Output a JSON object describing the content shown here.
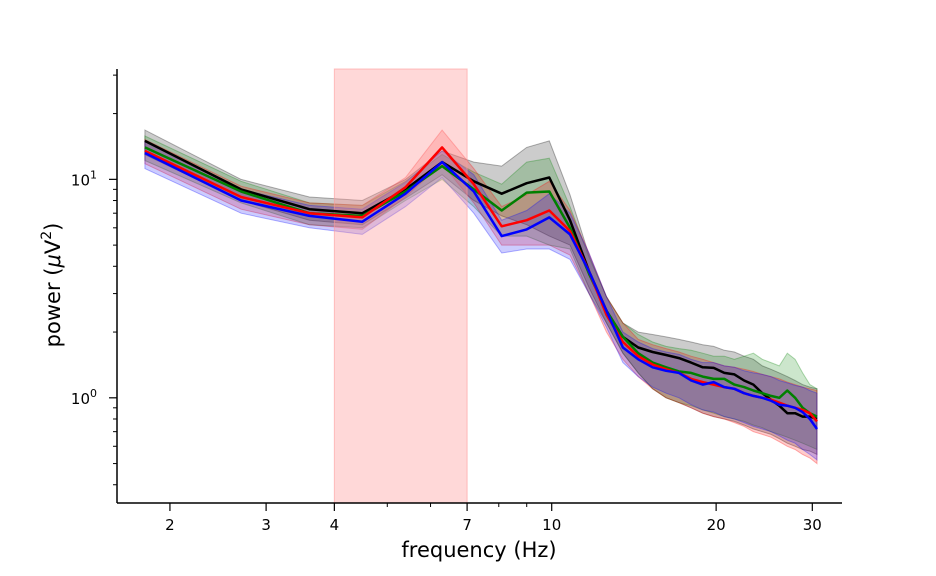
{
  "chart_data": {
    "type": "line",
    "xlabel": "frequency (Hz)",
    "ylabel_base": "power (",
    "ylabel_mu": "μ",
    "ylabel_unit": "V",
    "ylabel_exp": "2",
    "ylabel_close": ")",
    "xscale": "log",
    "yscale": "log",
    "xlim": [
      1.6,
      34
    ],
    "ylim": [
      0.33,
      32
    ],
    "grid": false,
    "legend": "none",
    "x_ticks": [
      {
        "value": 2,
        "label": "2"
      },
      {
        "value": 3,
        "label": "3"
      },
      {
        "value": 4,
        "label": "4"
      },
      {
        "value": 7,
        "label": "7"
      },
      {
        "value": 10,
        "label": "10"
      },
      {
        "value": 20,
        "label": "20"
      },
      {
        "value": 30,
        "label": "30"
      }
    ],
    "y_ticks": [
      {
        "value": 1,
        "base": "10",
        "exp": "0"
      },
      {
        "value": 10,
        "base": "10",
        "exp": "1"
      }
    ],
    "highlight_band": {
      "x0": 4,
      "x1": 7,
      "color": "#ff9999"
    },
    "x": [
      1.8,
      2.7,
      3.6,
      4.5,
      5.4,
      6.3,
      7.2,
      8.1,
      9.0,
      9.9,
      10.8,
      11.7,
      12.6,
      13.5,
      14.4,
      15.3,
      16.2,
      17.1,
      18.0,
      18.9,
      19.8,
      20.7,
      21.6,
      22.5,
      23.4,
      24.3,
      25.2,
      26.1,
      27.0,
      27.9,
      28.8,
      29.7,
      30.6
    ],
    "series": [
      {
        "color": "#000000",
        "values": [
          15.0,
          9.0,
          7.3,
          7.0,
          9.0,
          12.0,
          9.8,
          8.6,
          9.6,
          10.2,
          6.5,
          3.8,
          2.5,
          1.9,
          1.7,
          1.62,
          1.57,
          1.52,
          1.45,
          1.38,
          1.37,
          1.3,
          1.28,
          1.2,
          1.15,
          1.05,
          0.98,
          0.92,
          0.85,
          0.85,
          0.82,
          0.82,
          0.8
        ],
        "lower": [
          13.0,
          8.0,
          6.5,
          6.2,
          8.2,
          10.5,
          8.0,
          6.8,
          6.2,
          5.5,
          5.0,
          3.2,
          2.2,
          1.6,
          1.3,
          1.1,
          1.0,
          0.95,
          0.9,
          0.85,
          0.82,
          0.8,
          0.78,
          0.75,
          0.72,
          0.7,
          0.68,
          0.65,
          0.62,
          0.6,
          0.58,
          0.57,
          0.55
        ],
        "upper": [
          16.8,
          10.0,
          8.3,
          8.0,
          10.0,
          13.5,
          12.0,
          11.5,
          14.0,
          15.0,
          8.5,
          4.5,
          2.9,
          2.2,
          2.0,
          1.95,
          1.9,
          1.85,
          1.8,
          1.75,
          1.72,
          1.65,
          1.62,
          1.55,
          1.5,
          1.4,
          1.35,
          1.3,
          1.25,
          1.2,
          1.15,
          1.12,
          1.1
        ]
      },
      {
        "color": "#008000",
        "values": [
          14.0,
          8.8,
          7.0,
          6.8,
          8.8,
          11.5,
          9.0,
          7.2,
          8.7,
          8.8,
          6.0,
          3.7,
          2.5,
          1.9,
          1.6,
          1.45,
          1.38,
          1.32,
          1.3,
          1.25,
          1.22,
          1.22,
          1.15,
          1.12,
          1.08,
          1.05,
          1.02,
          1.0,
          1.08,
          1.0,
          0.9,
          0.85,
          0.82
        ],
        "lower": [
          12.2,
          7.8,
          6.2,
          6.0,
          8.0,
          10.0,
          7.5,
          5.5,
          5.5,
          5.0,
          4.8,
          3.0,
          2.2,
          1.6,
          1.3,
          1.1,
          1.0,
          0.95,
          0.92,
          0.88,
          0.85,
          0.82,
          0.8,
          0.78,
          0.75,
          0.73,
          0.7,
          0.68,
          0.66,
          0.64,
          0.62,
          0.6,
          0.58
        ],
        "upper": [
          15.8,
          9.8,
          7.8,
          7.6,
          9.8,
          13.0,
          10.8,
          9.5,
          12.0,
          12.5,
          7.5,
          4.4,
          2.9,
          2.2,
          1.95,
          1.8,
          1.72,
          1.68,
          1.65,
          1.6,
          1.55,
          1.55,
          1.5,
          1.55,
          1.6,
          1.5,
          1.45,
          1.4,
          1.6,
          1.5,
          1.3,
          1.15,
          1.1
        ]
      },
      {
        "color": "#ff0000",
        "values": [
          13.5,
          8.3,
          7.0,
          6.7,
          9.2,
          14.0,
          9.5,
          6.1,
          6.5,
          7.2,
          5.8,
          3.8,
          2.4,
          1.8,
          1.55,
          1.42,
          1.35,
          1.3,
          1.22,
          1.18,
          1.15,
          1.12,
          1.1,
          1.05,
          1.02,
          1.0,
          0.98,
          0.95,
          0.92,
          0.9,
          0.88,
          0.85,
          0.78
        ],
        "lower": [
          11.8,
          7.3,
          6.2,
          5.9,
          8.3,
          11.8,
          7.8,
          5.0,
          5.0,
          5.0,
          4.5,
          3.0,
          2.0,
          1.5,
          1.25,
          1.1,
          1.0,
          0.95,
          0.9,
          0.85,
          0.82,
          0.8,
          0.77,
          0.74,
          0.7,
          0.68,
          0.66,
          0.63,
          0.6,
          0.58,
          0.55,
          0.53,
          0.5
        ],
        "upper": [
          15.2,
          9.3,
          7.8,
          7.6,
          10.2,
          16.8,
          11.2,
          7.5,
          8.5,
          9.8,
          7.2,
          4.6,
          2.9,
          2.2,
          1.85,
          1.75,
          1.68,
          1.62,
          1.55,
          1.5,
          1.45,
          1.4,
          1.38,
          1.35,
          1.32,
          1.28,
          1.25,
          1.22,
          1.18,
          1.15,
          1.12,
          1.1,
          1.08
        ]
      },
      {
        "color": "#0000ff",
        "values": [
          13.2,
          8.0,
          6.8,
          6.4,
          8.6,
          12.0,
          8.8,
          5.5,
          5.9,
          6.7,
          5.6,
          3.8,
          2.5,
          1.7,
          1.5,
          1.38,
          1.33,
          1.3,
          1.2,
          1.15,
          1.18,
          1.12,
          1.1,
          1.05,
          1.02,
          1.0,
          0.97,
          0.93,
          0.92,
          0.9,
          0.86,
          0.8,
          0.72
        ],
        "lower": [
          11.2,
          7.0,
          6.0,
          5.6,
          7.5,
          10.2,
          7.0,
          4.6,
          4.8,
          4.8,
          4.3,
          3.0,
          2.1,
          1.45,
          1.25,
          1.12,
          1.05,
          1.0,
          0.93,
          0.88,
          0.86,
          0.82,
          0.8,
          0.77,
          0.74,
          0.72,
          0.7,
          0.67,
          0.64,
          0.62,
          0.58,
          0.55,
          0.52
        ],
        "upper": [
          15.0,
          9.0,
          7.6,
          7.3,
          9.7,
          13.5,
          10.5,
          6.5,
          7.2,
          8.6,
          7.0,
          4.6,
          2.9,
          2.0,
          1.8,
          1.68,
          1.62,
          1.58,
          1.5,
          1.45,
          1.45,
          1.4,
          1.38,
          1.33,
          1.3,
          1.28,
          1.25,
          1.2,
          1.17,
          1.14,
          1.12,
          1.08,
          1.05
        ]
      }
    ]
  }
}
